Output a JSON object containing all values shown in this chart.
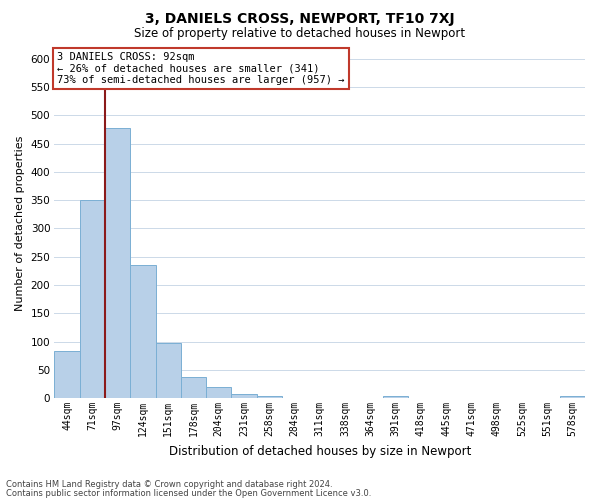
{
  "title": "3, DANIELS CROSS, NEWPORT, TF10 7XJ",
  "subtitle": "Size of property relative to detached houses in Newport",
  "xlabel": "Distribution of detached houses by size in Newport",
  "ylabel": "Number of detached properties",
  "bar_labels": [
    "44sqm",
    "71sqm",
    "97sqm",
    "124sqm",
    "151sqm",
    "178sqm",
    "204sqm",
    "231sqm",
    "258sqm",
    "284sqm",
    "311sqm",
    "338sqm",
    "364sqm",
    "391sqm",
    "418sqm",
    "445sqm",
    "471sqm",
    "498sqm",
    "525sqm",
    "551sqm",
    "578sqm"
  ],
  "bar_values": [
    83,
    350,
    478,
    235,
    97,
    37,
    19,
    8,
    4,
    0,
    0,
    0,
    0,
    3,
    0,
    0,
    0,
    0,
    0,
    0,
    3
  ],
  "bar_color": "#b8d0e8",
  "bar_edge_color": "#7bafd4",
  "vline_color": "#8b1a1a",
  "annotation_title": "3 DANIELS CROSS: 92sqm",
  "annotation_line1": "← 26% of detached houses are smaller (341)",
  "annotation_line2": "73% of semi-detached houses are larger (957) →",
  "annotation_box_color": "#ffffff",
  "annotation_box_edge": "#c0392b",
  "ylim": [
    0,
    620
  ],
  "yticks": [
    0,
    50,
    100,
    150,
    200,
    250,
    300,
    350,
    400,
    450,
    500,
    550,
    600
  ],
  "footnote1": "Contains HM Land Registry data © Crown copyright and database right 2024.",
  "footnote2": "Contains public sector information licensed under the Open Government Licence v3.0.",
  "background_color": "#ffffff",
  "grid_color": "#ccd9e8",
  "title_fontsize": 10,
  "subtitle_fontsize": 8.5,
  "xlabel_fontsize": 8.5,
  "ylabel_fontsize": 8
}
